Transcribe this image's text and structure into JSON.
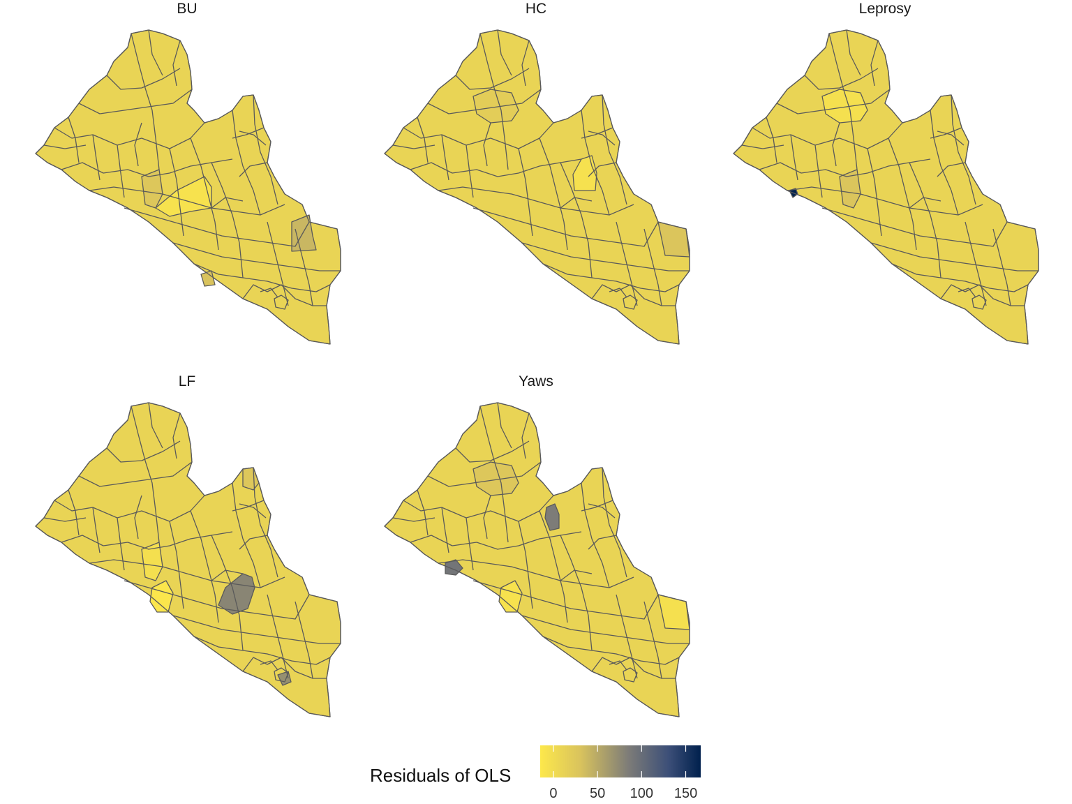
{
  "chart_data": {
    "type": "choropleth",
    "panels": [
      {
        "title": "BU",
        "highlights": [
          {
            "region": "central-strip",
            "value": -8
          },
          {
            "region": "central-west",
            "value": 25
          },
          {
            "region": "east-block",
            "value": 40
          },
          {
            "region": "south-coast-small",
            "value": 30
          }
        ]
      },
      {
        "title": "HC",
        "highlights": [
          {
            "region": "central-east",
            "value": -6
          },
          {
            "region": "east-edge",
            "value": 28
          },
          {
            "region": "north-middle",
            "value": 18
          }
        ]
      },
      {
        "title": "Leprosy",
        "highlights": [
          {
            "region": "west-coast-spot",
            "value": 165
          },
          {
            "region": "central-west",
            "value": 28
          },
          {
            "region": "north-middle",
            "value": -5
          }
        ]
      },
      {
        "title": "LF",
        "highlights": [
          {
            "region": "coastal-west",
            "value": -12
          },
          {
            "region": "central-west",
            "value": -4
          },
          {
            "region": "central-gray",
            "value": 78
          },
          {
            "region": "south-east-spot",
            "value": 70
          },
          {
            "region": "north-east",
            "value": 25
          }
        ]
      },
      {
        "title": "Yaws",
        "highlights": [
          {
            "region": "north-east-gray",
            "value": 85
          },
          {
            "region": "west-coast-gray",
            "value": 92
          },
          {
            "region": "coastal-west",
            "value": -8
          },
          {
            "region": "north-middle",
            "value": 25
          },
          {
            "region": "east-edge",
            "value": -5
          }
        ]
      }
    ],
    "base_value": 10,
    "legend": {
      "title": "Residuals of OLS",
      "range": [
        -15,
        167
      ],
      "ticks": [
        0,
        50,
        100,
        150
      ],
      "colors": [
        "#fde84b",
        "#d9c35d",
        "#7d7c78",
        "#3c4f78",
        "#00204d"
      ]
    }
  }
}
